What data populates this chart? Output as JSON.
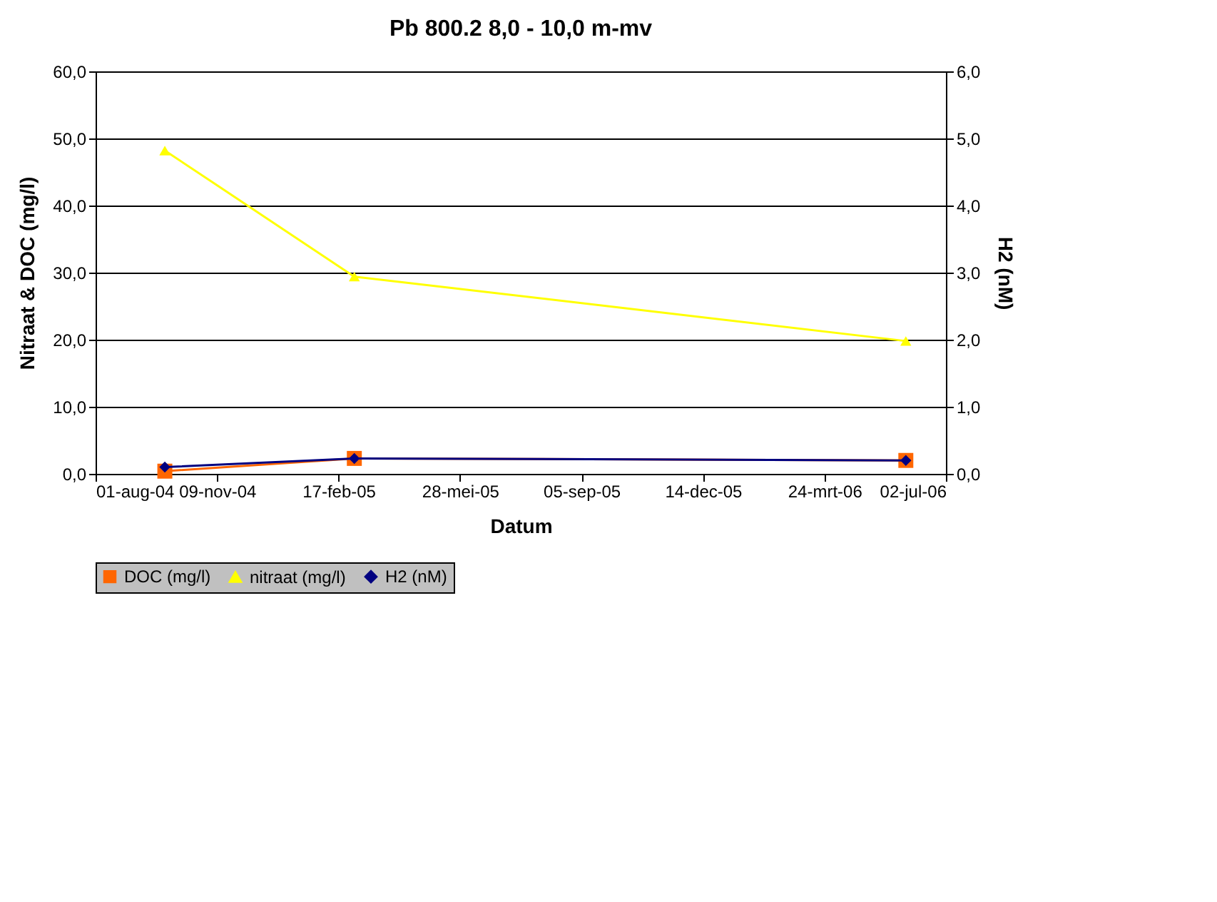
{
  "chart_data": {
    "type": "line",
    "title": "Pb 800.2 8,0 - 10,0 m-mv",
    "xlabel": "Datum",
    "ylabel": "Nitraat & DOC (mg/l)",
    "y2label": "H2 (nM)",
    "x": [
      "2004-09-27",
      "2005-03-02",
      "2006-05-30"
    ],
    "series": [
      {
        "name": "DOC (mg/l)",
        "color": "#ff6600",
        "marker": "square",
        "values": [
          0.4,
          2.3,
          2.0
        ]
      },
      {
        "name": "nitraat (mg/l)",
        "color": "#ffff00",
        "marker": "triangle",
        "values": [
          48.2,
          29.4,
          19.8
        ]
      },
      {
        "name": "H2 (nM)",
        "color": "#000080",
        "marker": "diamond",
        "axis": "y2",
        "values": [
          0.1,
          0.23,
          0.2
        ]
      }
    ],
    "xlim": [
      "2004-08-01",
      "2006-07-02"
    ],
    "xticks": [
      {
        "value": "2004-08-01",
        "label": "01-aug-04"
      },
      {
        "value": "2004-11-09",
        "label": "09-nov-04"
      },
      {
        "value": "2005-02-17",
        "label": "17-feb-05"
      },
      {
        "value": "2005-05-28",
        "label": "28-mei-05"
      },
      {
        "value": "2005-09-05",
        "label": "05-sep-05"
      },
      {
        "value": "2005-12-14",
        "label": "14-dec-05"
      },
      {
        "value": "2006-03-24",
        "label": "24-mrt-06"
      },
      {
        "value": "2006-07-02",
        "label": "02-jul-06"
      }
    ],
    "ylim": [
      0,
      60
    ],
    "yticks": [
      {
        "value": 0,
        "label": "0,0"
      },
      {
        "value": 10,
        "label": "10,0"
      },
      {
        "value": 20,
        "label": "20,0"
      },
      {
        "value": 30,
        "label": "30,0"
      },
      {
        "value": 40,
        "label": "40,0"
      },
      {
        "value": 50,
        "label": "50,0"
      },
      {
        "value": 60,
        "label": "60,0"
      }
    ],
    "y2lim": [
      0,
      6
    ],
    "y2ticks": [
      {
        "value": 0,
        "label": "0,0"
      },
      {
        "value": 1,
        "label": "1,0"
      },
      {
        "value": 2,
        "label": "2,0"
      },
      {
        "value": 3,
        "label": "3,0"
      },
      {
        "value": 4,
        "label": "4,0"
      },
      {
        "value": 5,
        "label": "5,0"
      },
      {
        "value": 6,
        "label": "6,0"
      }
    ],
    "grid": "y",
    "legend": "bottom"
  }
}
